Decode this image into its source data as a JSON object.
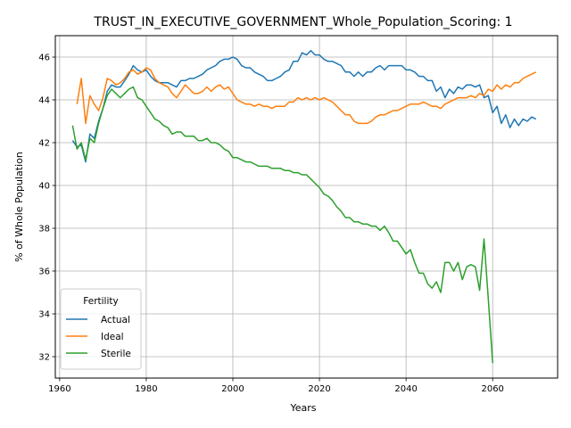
{
  "chart_data": {
    "type": "line",
    "title": "TRUST_IN_EXECUTIVE_GOVERNMENT_Whole_Population_Scoring: 1",
    "xlabel": "Years",
    "ylabel": "% of Whole Population",
    "xlim": [
      1959,
      2075
    ],
    "ylim": [
      31,
      47
    ],
    "xticks": [
      1960,
      1980,
      2000,
      2020,
      2040,
      2060
    ],
    "yticks": [
      32,
      34,
      36,
      38,
      40,
      42,
      44,
      46
    ],
    "grid": true,
    "legend": {
      "title": "Fertility",
      "placement": "lower-left",
      "entries": [
        "Actual",
        "Ideal",
        "Sterile"
      ]
    },
    "series": [
      {
        "name": "Actual",
        "color": "#1f77b4",
        "x": [
          1963,
          1964,
          1965,
          1966,
          1967,
          1968,
          1969,
          1970,
          1971,
          1972,
          1973,
          1974,
          1975,
          1976,
          1977,
          1978,
          1979,
          1980,
          1981,
          1982,
          1983,
          1984,
          1985,
          1986,
          1987,
          1988,
          1989,
          1990,
          1991,
          1992,
          1993,
          1994,
          1995,
          1996,
          1997,
          1998,
          1999,
          2000,
          2001,
          2002,
          2003,
          2004,
          2005,
          2006,
          2007,
          2008,
          2009,
          2010,
          2011,
          2012,
          2013,
          2014,
          2015,
          2016,
          2017,
          2018,
          2019,
          2020,
          2021,
          2022,
          2023,
          2024,
          2025,
          2026,
          2027,
          2028,
          2029,
          2030,
          2031,
          2032,
          2033,
          2034,
          2035,
          2036,
          2037,
          2038,
          2039,
          2040,
          2041,
          2042,
          2043,
          2044,
          2045,
          2046,
          2047,
          2048,
          2049,
          2050,
          2051,
          2052,
          2053,
          2054,
          2055,
          2056,
          2057,
          2058,
          2059,
          2060,
          2061,
          2062,
          2063,
          2064,
          2065,
          2066,
          2067,
          2068,
          2069,
          2070
        ],
        "y": [
          42.1,
          41.8,
          41.9,
          41.1,
          42.4,
          42.2,
          43.0,
          43.6,
          44.4,
          44.7,
          44.6,
          44.6,
          44.9,
          45.2,
          45.6,
          45.4,
          45.3,
          45.4,
          45.1,
          44.9,
          44.8,
          44.8,
          44.8,
          44.7,
          44.6,
          44.9,
          44.9,
          45.0,
          45.0,
          45.1,
          45.2,
          45.4,
          45.5,
          45.6,
          45.8,
          45.9,
          45.9,
          46.0,
          45.9,
          45.6,
          45.5,
          45.5,
          45.3,
          45.2,
          45.1,
          44.9,
          44.9,
          45.0,
          45.1,
          45.3,
          45.4,
          45.8,
          45.8,
          46.2,
          46.1,
          46.3,
          46.1,
          46.1,
          45.9,
          45.8,
          45.8,
          45.7,
          45.6,
          45.3,
          45.3,
          45.1,
          45.3,
          45.1,
          45.3,
          45.3,
          45.5,
          45.6,
          45.4,
          45.6,
          45.6,
          45.6,
          45.6,
          45.4,
          45.4,
          45.3,
          45.1,
          45.1,
          44.9,
          44.9,
          44.4,
          44.6,
          44.1,
          44.5,
          44.3,
          44.6,
          44.5,
          44.7,
          44.7,
          44.6,
          44.7,
          44.1,
          44.2,
          43.4,
          43.7,
          42.9,
          43.3,
          42.7,
          43.1,
          42.8,
          43.1,
          43.0,
          43.2,
          43.1
        ]
      },
      {
        "name": "Ideal",
        "color": "#ff7f0e",
        "x": [
          1964,
          1965,
          1966,
          1967,
          1968,
          1969,
          1970,
          1971,
          1972,
          1973,
          1974,
          1975,
          1976,
          1977,
          1978,
          1979,
          1980,
          1981,
          1982,
          1983,
          1984,
          1985,
          1986,
          1987,
          1988,
          1989,
          1990,
          1991,
          1992,
          1993,
          1994,
          1995,
          1996,
          1997,
          1998,
          1999,
          2000,
          2001,
          2002,
          2003,
          2004,
          2005,
          2006,
          2007,
          2008,
          2009,
          2010,
          2011,
          2012,
          2013,
          2014,
          2015,
          2016,
          2017,
          2018,
          2019,
          2020,
          2021,
          2022,
          2023,
          2024,
          2025,
          2026,
          2027,
          2028,
          2029,
          2030,
          2031,
          2032,
          2033,
          2034,
          2035,
          2036,
          2037,
          2038,
          2039,
          2040,
          2041,
          2042,
          2043,
          2044,
          2045,
          2046,
          2047,
          2048,
          2049,
          2050,
          2051,
          2052,
          2053,
          2054,
          2055,
          2056,
          2057,
          2058,
          2059,
          2060,
          2061,
          2062,
          2063,
          2064,
          2065,
          2066,
          2067,
          2068,
          2069,
          2070
        ],
        "y": [
          43.8,
          45.0,
          42.9,
          44.2,
          43.8,
          43.5,
          44.1,
          45.0,
          44.9,
          44.7,
          44.8,
          45.0,
          45.3,
          45.4,
          45.2,
          45.3,
          45.5,
          45.4,
          45.0,
          44.8,
          44.7,
          44.6,
          44.3,
          44.1,
          44.4,
          44.7,
          44.5,
          44.3,
          44.3,
          44.4,
          44.6,
          44.4,
          44.6,
          44.7,
          44.5,
          44.6,
          44.3,
          44.0,
          43.9,
          43.8,
          43.8,
          43.7,
          43.8,
          43.7,
          43.7,
          43.6,
          43.7,
          43.7,
          43.7,
          43.9,
          43.9,
          44.1,
          44.0,
          44.1,
          44.0,
          44.1,
          44.0,
          44.1,
          44.0,
          43.9,
          43.7,
          43.5,
          43.3,
          43.3,
          43.0,
          42.9,
          42.9,
          42.9,
          43.0,
          43.2,
          43.3,
          43.3,
          43.4,
          43.5,
          43.5,
          43.6,
          43.7,
          43.8,
          43.8,
          43.8,
          43.9,
          43.8,
          43.7,
          43.7,
          43.6,
          43.8,
          43.9,
          44.0,
          44.1,
          44.1,
          44.1,
          44.2,
          44.1,
          44.3,
          44.2,
          44.5,
          44.4,
          44.7,
          44.5,
          44.7,
          44.6,
          44.8,
          44.8,
          45.0,
          45.1,
          45.2,
          45.3
        ]
      },
      {
        "name": "Sterile",
        "color": "#2ca02c",
        "x": [
          1963,
          1964,
          1965,
          1966,
          1967,
          1968,
          1969,
          1970,
          1971,
          1972,
          1973,
          1974,
          1975,
          1976,
          1977,
          1978,
          1979,
          1980,
          1981,
          1982,
          1983,
          1984,
          1985,
          1986,
          1987,
          1988,
          1989,
          1990,
          1991,
          1992,
          1993,
          1994,
          1995,
          1996,
          1997,
          1998,
          1999,
          2000,
          2001,
          2002,
          2003,
          2004,
          2005,
          2006,
          2007,
          2008,
          2009,
          2010,
          2011,
          2012,
          2013,
          2014,
          2015,
          2016,
          2017,
          2018,
          2019,
          2020,
          2021,
          2022,
          2023,
          2024,
          2025,
          2026,
          2027,
          2028,
          2029,
          2030,
          2031,
          2032,
          2033,
          2034,
          2035,
          2036,
          2037,
          2038,
          2039,
          2040,
          2041,
          2042,
          2043,
          2044,
          2045,
          2046,
          2047,
          2048,
          2049,
          2050,
          2051,
          2052,
          2053,
          2054,
          2055,
          2056,
          2057,
          2058,
          2059,
          2060
        ],
        "y": [
          42.8,
          41.7,
          42.0,
          41.2,
          42.2,
          42.0,
          42.9,
          43.6,
          44.2,
          44.5,
          44.3,
          44.1,
          44.3,
          44.5,
          44.6,
          44.1,
          44.0,
          43.7,
          43.4,
          43.1,
          43.0,
          42.8,
          42.7,
          42.4,
          42.5,
          42.5,
          42.3,
          42.3,
          42.3,
          42.1,
          42.1,
          42.2,
          42.0,
          42.0,
          41.9,
          41.7,
          41.6,
          41.3,
          41.3,
          41.2,
          41.1,
          41.1,
          41.0,
          40.9,
          40.9,
          40.9,
          40.8,
          40.8,
          40.8,
          40.7,
          40.7,
          40.6,
          40.6,
          40.5,
          40.5,
          40.3,
          40.1,
          39.9,
          39.6,
          39.5,
          39.3,
          39.0,
          38.8,
          38.5,
          38.5,
          38.3,
          38.3,
          38.2,
          38.2,
          38.1,
          38.1,
          37.9,
          38.1,
          37.8,
          37.4,
          37.4,
          37.1,
          36.8,
          37.0,
          36.4,
          35.9,
          35.9,
          35.4,
          35.2,
          35.5,
          35.0,
          36.4,
          36.4,
          36.0,
          36.4,
          35.6,
          36.2,
          36.3,
          36.2,
          35.1,
          37.5,
          34.7,
          31.7
        ]
      }
    ]
  }
}
